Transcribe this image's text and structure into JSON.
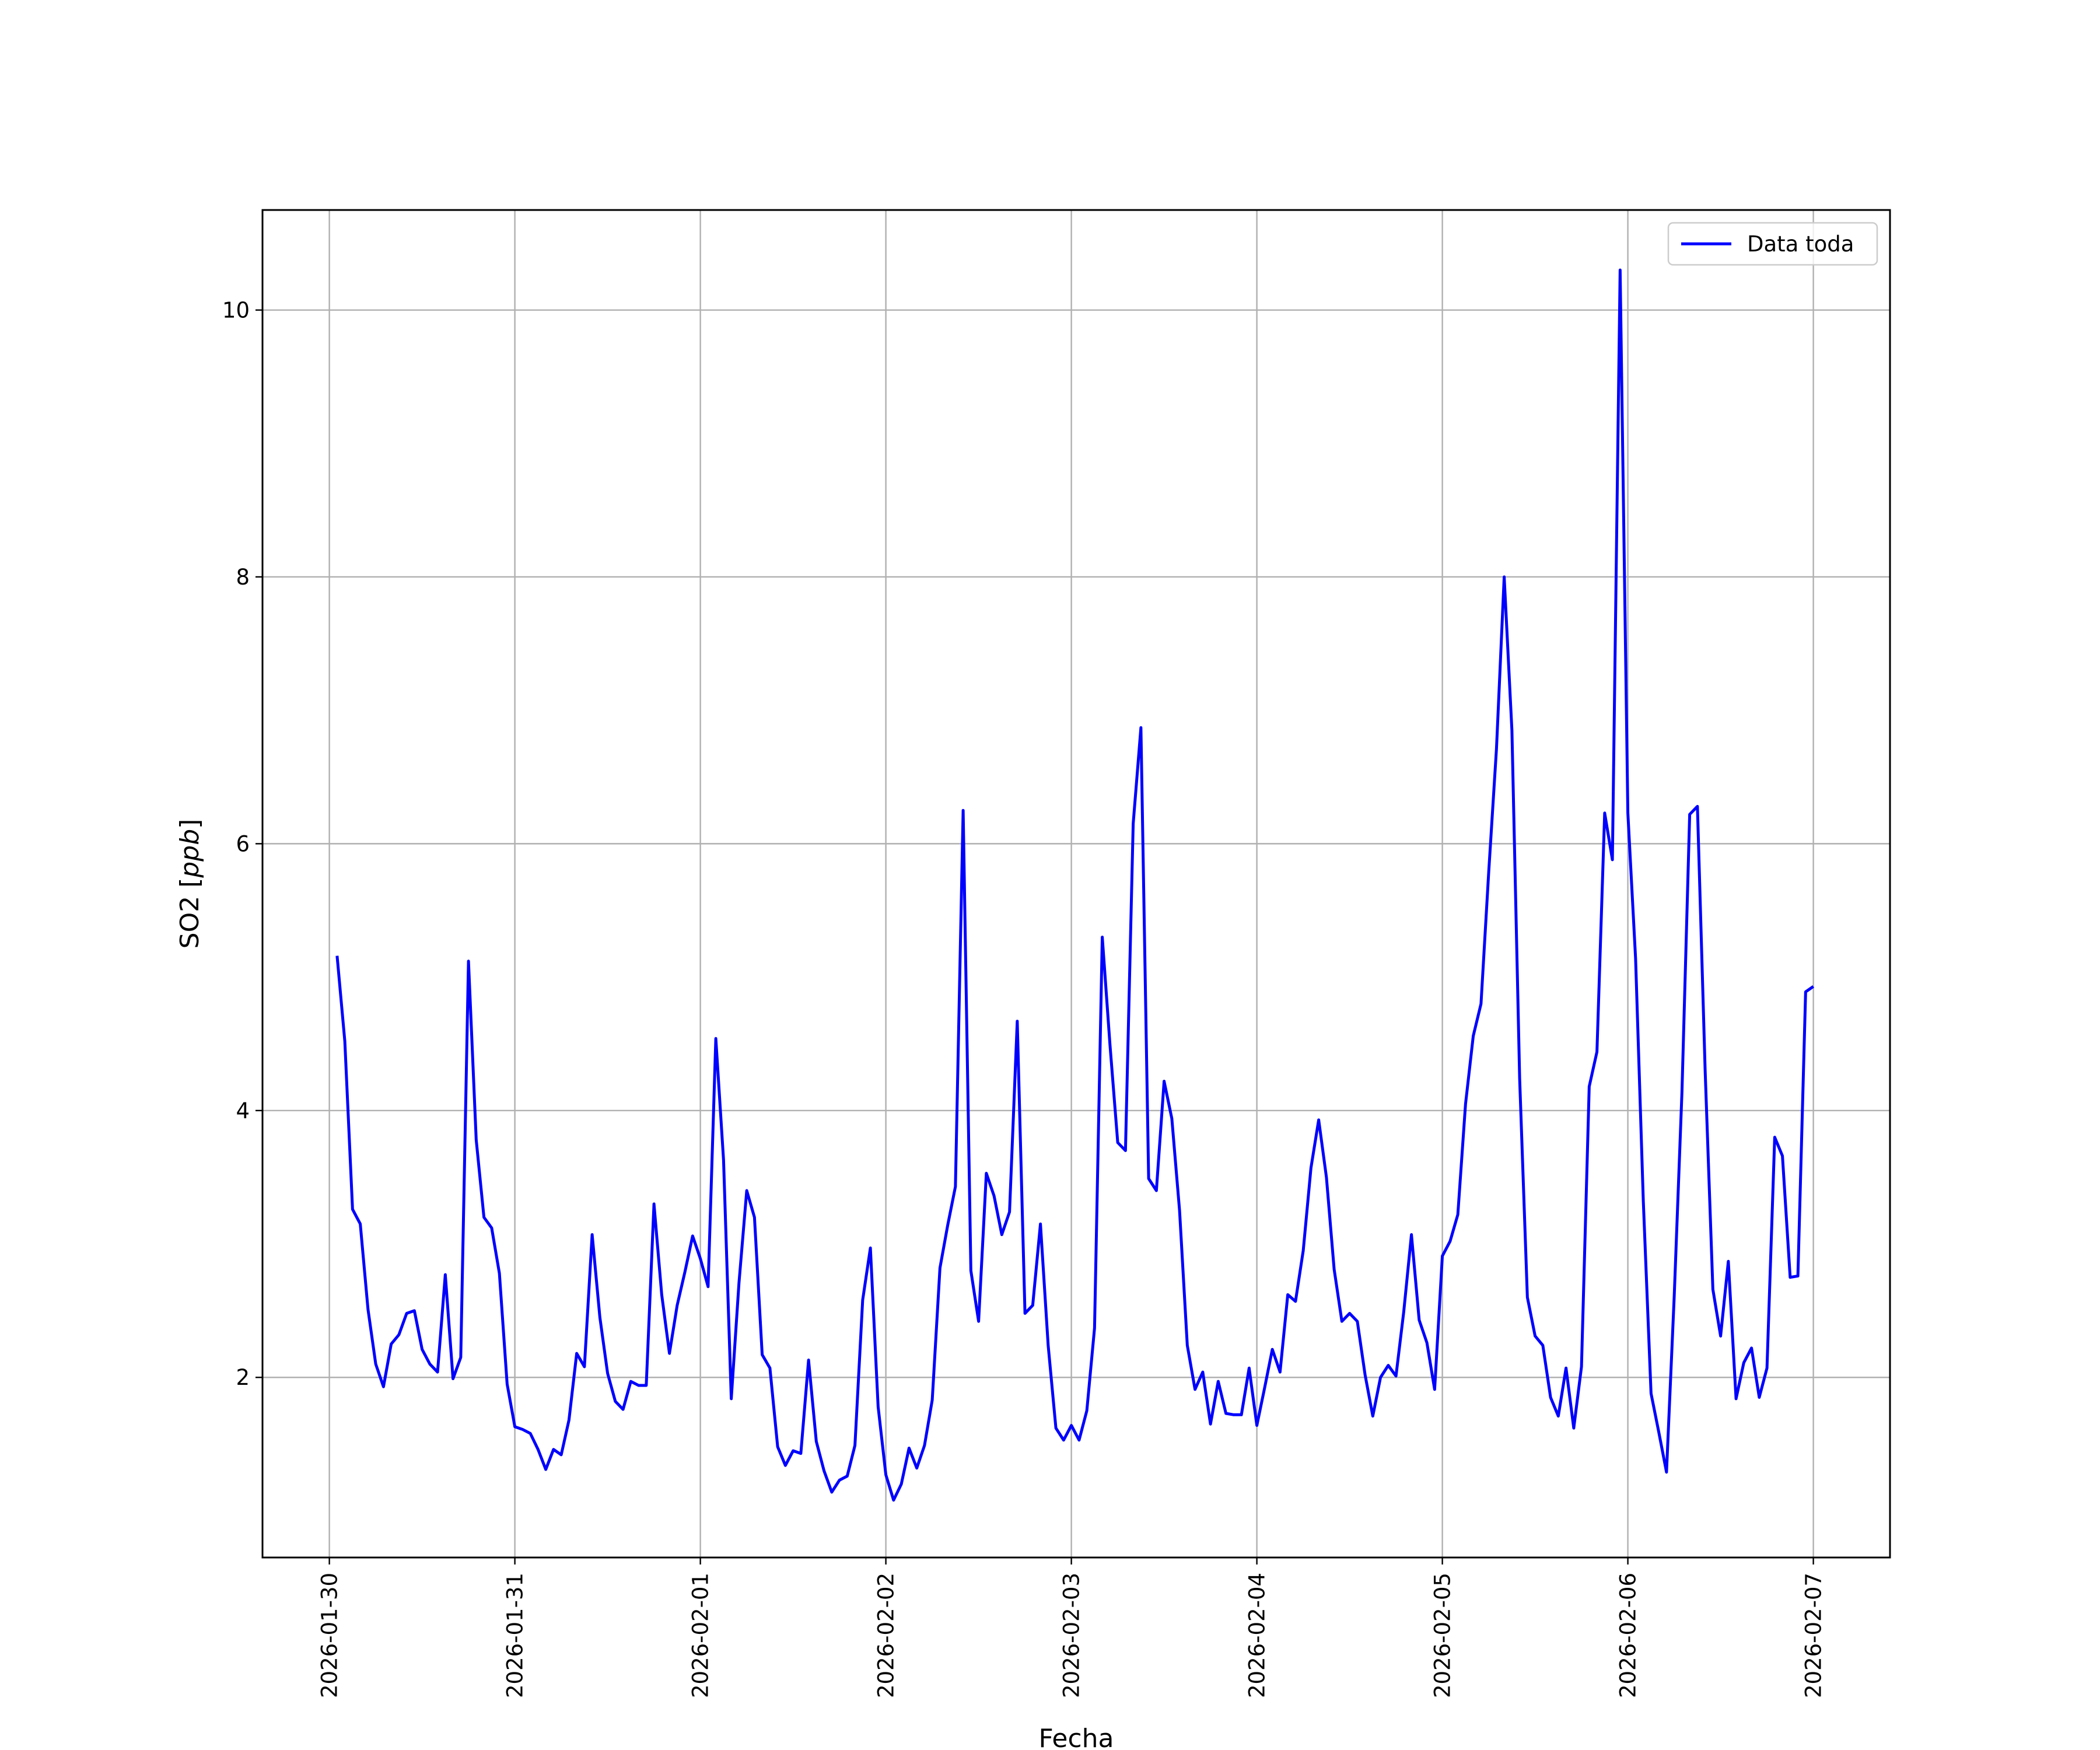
{
  "chart_data": {
    "type": "line",
    "title": "",
    "xlabel": "Fecha",
    "ylabel": "SO2 [ppb]",
    "ylabel_parts": {
      "plain": "SO2 [",
      "italic": "ppb",
      "close": "]"
    },
    "x_ticks": [
      "2026-01-30",
      "2026-01-31",
      "2026-02-01",
      "2026-02-02",
      "2026-02-03",
      "2026-02-04",
      "2026-02-05",
      "2026-02-06",
      "2026-02-07"
    ],
    "y_ticks": [
      2,
      4,
      6,
      8,
      10
    ],
    "xlim": [
      "2026-01-29 15:21",
      "2026-02-07 09:55"
    ],
    "ylim": [
      0.65,
      10.75
    ],
    "grid": true,
    "legend_position": "top-right",
    "series": [
      {
        "name": "Data toda",
        "color": "#0000ff",
        "start": "2026-01-30 01:00",
        "interval_hours": 1,
        "values": [
          5.16,
          4.52,
          3.26,
          3.15,
          2.51,
          2.1,
          1.93,
          2.25,
          2.32,
          2.48,
          2.5,
          2.21,
          2.1,
          2.04,
          2.77,
          1.99,
          2.15,
          5.12,
          3.78,
          3.2,
          3.12,
          2.78,
          1.95,
          1.63,
          1.61,
          1.58,
          1.46,
          1.31,
          1.46,
          1.42,
          1.68,
          2.18,
          2.08,
          3.07,
          2.45,
          2.03,
          1.82,
          1.76,
          1.97,
          1.94,
          1.94,
          3.3,
          2.62,
          2.18,
          2.54,
          2.79,
          3.06,
          2.89,
          2.68,
          4.54,
          3.63,
          1.84,
          2.71,
          3.4,
          3.2,
          2.17,
          2.07,
          1.48,
          1.34,
          1.45,
          1.43,
          2.13,
          1.52,
          1.3,
          1.14,
          1.23,
          1.26,
          1.49,
          2.58,
          2.97,
          1.78,
          1.27,
          1.08,
          1.2,
          1.47,
          1.32,
          1.49,
          1.83,
          2.82,
          3.14,
          3.43,
          6.25,
          2.8,
          2.42,
          3.53,
          3.36,
          3.07,
          3.24,
          4.67,
          2.48,
          2.54,
          3.15,
          2.24,
          1.62,
          1.53,
          1.64,
          1.53,
          1.75,
          2.37,
          5.3,
          4.49,
          3.76,
          3.7,
          6.15,
          6.87,
          3.49,
          3.4,
          4.22,
          3.94,
          3.25,
          2.24,
          1.91,
          2.04,
          1.65,
          1.97,
          1.73,
          1.72,
          1.72,
          2.07,
          1.64,
          1.92,
          2.21,
          2.04,
          2.62,
          2.57,
          2.95,
          3.57,
          3.93,
          3.5,
          2.81,
          2.42,
          2.48,
          2.42,
          2.02,
          1.71,
          2.0,
          2.09,
          2.01,
          2.49,
          3.07,
          2.43,
          2.26,
          1.91,
          2.91,
          3.02,
          3.22,
          4.05,
          4.56,
          4.8,
          5.79,
          6.71,
          8.0,
          6.85,
          4.24,
          2.6,
          2.31,
          2.24,
          1.85,
          1.71,
          2.07,
          1.62,
          2.08,
          4.18,
          4.44,
          6.23,
          5.88,
          10.3,
          6.23,
          5.14,
          3.32,
          1.88,
          1.59,
          1.29,
          2.61,
          4.14,
          6.22,
          6.28,
          4.3,
          2.66,
          2.31,
          2.87,
          1.84,
          2.11,
          2.22,
          1.85,
          2.07,
          3.8,
          3.66,
          2.75,
          2.76,
          4.89,
          4.93
        ]
      }
    ]
  }
}
